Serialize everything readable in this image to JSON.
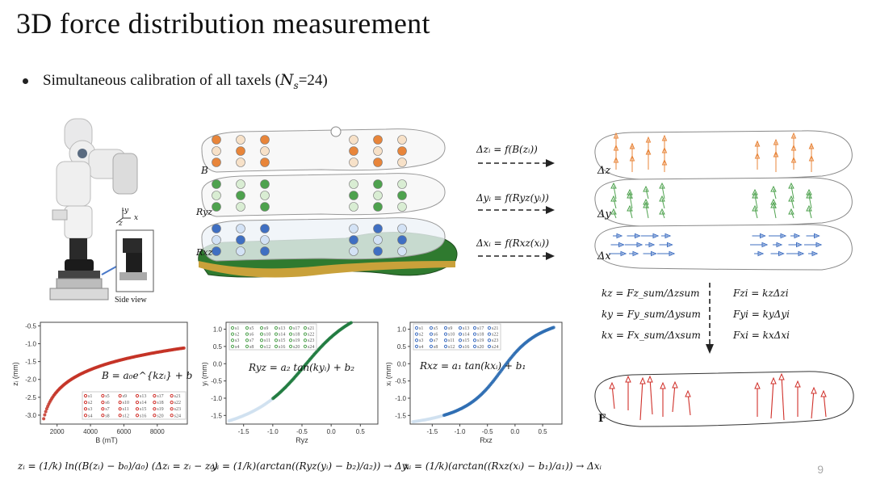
{
  "slide": {
    "title": "3D force distribution measurement",
    "bullet_prefix": "Simultaneous calibration of all taxels (",
    "bullet_var": "N",
    "bullet_sub": "s",
    "bullet_suffix": "=24)",
    "page_number": "9"
  },
  "robot": {
    "side_view_label": "Side view",
    "axis_y": "-y",
    "axis_x": "x",
    "axis_z": "z"
  },
  "layers": {
    "label_b": "B",
    "label_ryz": "Ryz",
    "label_rxz": "Rxz",
    "arrow1": "Δzᵢ = f(B(zᵢ))",
    "arrow2": "Δyᵢ = f(Ryz(yᵢ))",
    "arrow3": "Δxᵢ = f(Rxz(xᵢ))",
    "out_z": "Δz",
    "out_y": "Δy",
    "out_x": "Δx",
    "out_f": "F"
  },
  "gains": {
    "kz": "kz = Fz_sum/Δzsum",
    "ky": "ky = Fy_sum/Δysum",
    "kx": "kx = Fx_sum/Δxsum",
    "fz": "Fzi = kzΔzi",
    "fy": "Fyi = kyΔyi",
    "fx": "Fxi = kxΔxi"
  },
  "plots": {
    "p1": {
      "xlabel": "B (mT)",
      "ylabel": "zᵢ (mm)",
      "eq": "B = a₀e^{kzᵢ} + b₀",
      "xticks": [
        "2000",
        "4000",
        "6000",
        "8000"
      ],
      "yticks": [
        "-0.5",
        "-1.0",
        "-1.5",
        "-2.0",
        "-2.5",
        "-3.0"
      ]
    },
    "p2": {
      "xlabel": "Ryz",
      "ylabel": "yᵢ (mm)",
      "eq": "Ryz = a₂ tan(kyᵢ) + b₂",
      "xticks": [
        "-1.5",
        "-1.0",
        "-0.5",
        "0.0",
        "0.5"
      ],
      "yticks": [
        "1.0",
        "0.5",
        "0.0",
        "-0.5",
        "-1.0",
        "-1.5"
      ]
    },
    "p3": {
      "xlabel": "Rxz",
      "ylabel": "xᵢ (mm)",
      "eq": "Rxz = a₁ tan(kxᵢ) + b₁",
      "xticks": [
        "-1.5",
        "-1.0",
        "-0.5",
        "0.0",
        "0.5"
      ],
      "yticks": [
        "1.0",
        "0.5",
        "0.0",
        "-0.5",
        "-1.0",
        "-1.5"
      ]
    },
    "legend": [
      "s1",
      "s2",
      "s3",
      "s4",
      "s5",
      "s6",
      "s7",
      "s8",
      "s9",
      "s10",
      "s11",
      "s12",
      "s13",
      "s14",
      "s15",
      "s16",
      "s17",
      "s18",
      "s19",
      "s20",
      "s21",
      "s22",
      "s23",
      "s24"
    ]
  },
  "formulas": {
    "f1": "zᵢ = (1/k) ln((B(zᵢ) − b₀)/a₀)   (Δzᵢ = zᵢ − z₀)",
    "f2": "yᵢ = (1/k)(arctan((Ryz(yᵢ) − b₂)/a₂)) → Δyᵢ",
    "f3": "xᵢ = (1/k)(arctan((Rxz(xᵢ) − b₁)/a₁)) → Δxᵢ"
  },
  "colors": {
    "orange": "#e8853a",
    "green": "#4ea24e",
    "blue": "#3f6fc2",
    "red": "#d0302a"
  }
}
